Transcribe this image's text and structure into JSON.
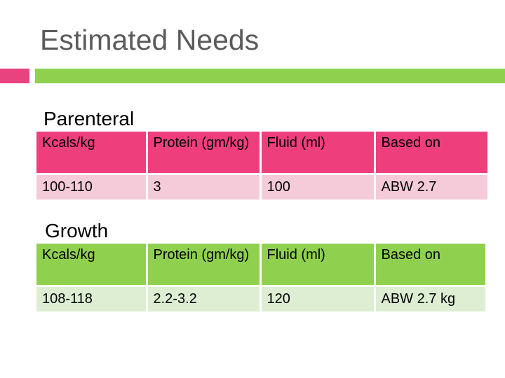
{
  "slide": {
    "title": "Estimated Needs",
    "accent_colors": {
      "pink": "#e8437e",
      "green": "#8fd14f"
    }
  },
  "parenteral": {
    "heading": "Parenteral",
    "headers": [
      "Kcals/kg",
      "Protein (gm/kg)",
      "Fluid (ml)",
      "Based on"
    ],
    "row": [
      "100-110",
      "3",
      "100",
      "ABW 2.7"
    ],
    "colors": {
      "header_bg": "#ee3f7c",
      "row_bg": "#f6cbd9"
    }
  },
  "growth": {
    "heading": "Growth",
    "headers": [
      "Kcals/kg",
      "Protein (gm/kg)",
      "Fluid (ml)",
      "Based on"
    ],
    "row": [
      "108-118",
      "2.2-3.2",
      "120",
      "ABW 2.7 kg"
    ],
    "colors": {
      "header_bg": "#8fd14f",
      "row_bg": "#ddeed3"
    }
  }
}
